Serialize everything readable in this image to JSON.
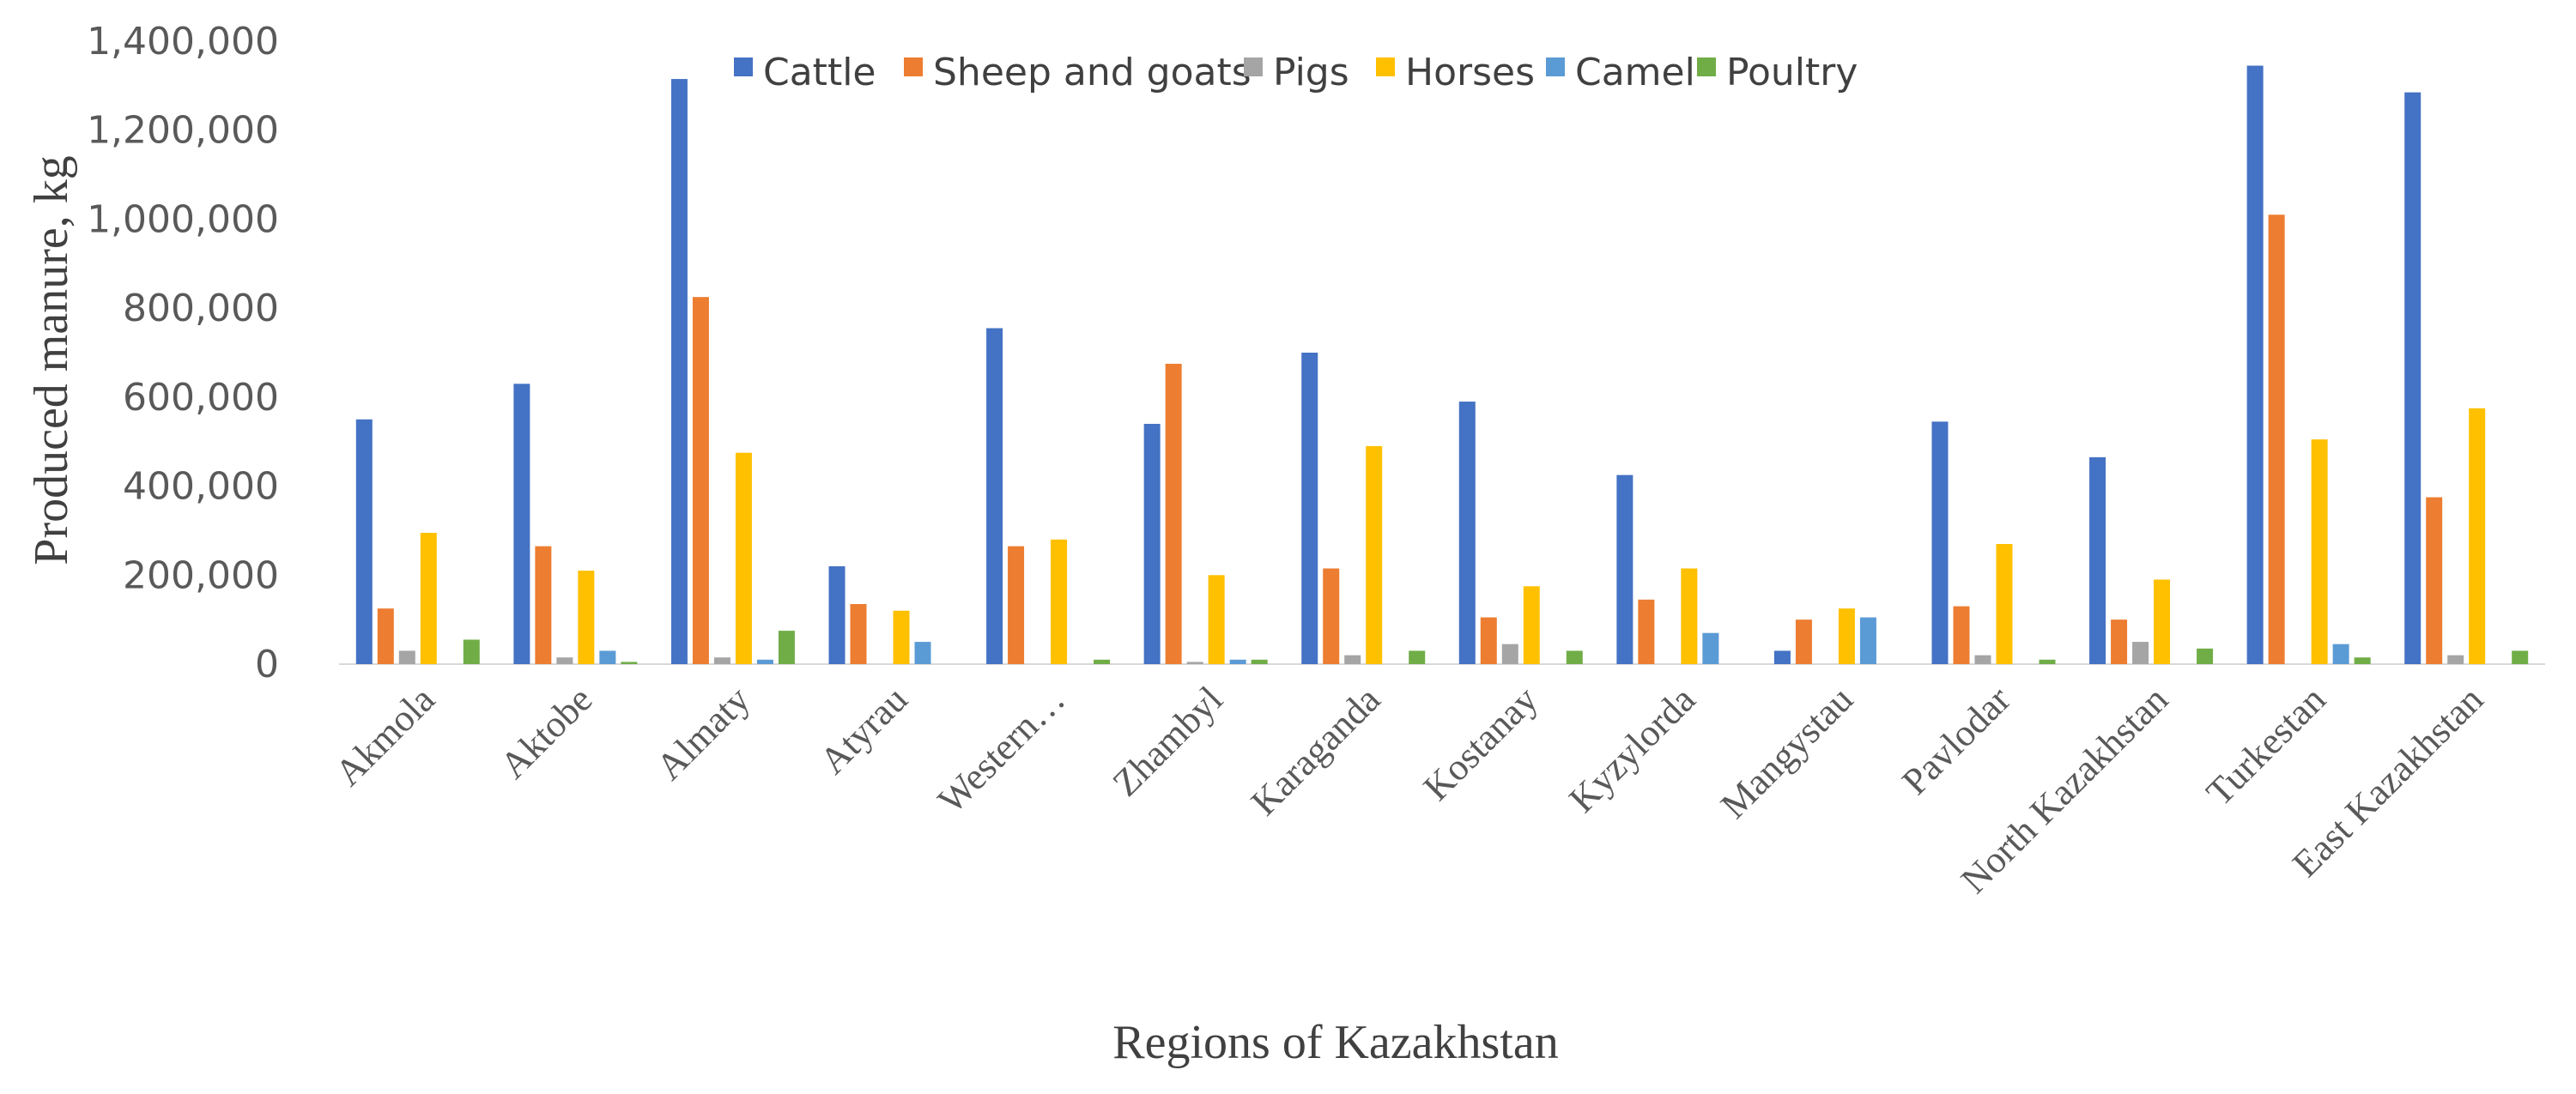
{
  "chart_data": {
    "type": "bar",
    "title": "",
    "xlabel": "Regions of Kazakhstan",
    "ylabel": "Produced manure, kg",
    "ylim": [
      0,
      1400000
    ],
    "yticks": [
      "0",
      "200,000",
      "400,000",
      "600,000",
      "800,000",
      "1,000,000",
      "1,200,000",
      "1,400,000"
    ],
    "ytick_values": [
      0,
      200000,
      400000,
      600000,
      800000,
      1000000,
      1200000,
      1400000
    ],
    "legend_position": "top",
    "grid": false,
    "categories": [
      "Akmola",
      "Aktobe",
      "Almaty",
      "Atyrau",
      "Western…",
      "Zhambyl",
      "Karaganda",
      "Kostanay",
      "Kyzylorda",
      "Mangystau",
      "Pavlodar",
      "North Kazakhstan",
      "Turkestan",
      "East Kazakhstan"
    ],
    "series": [
      {
        "name": "Cattle",
        "color": "#4472C4",
        "values": [
          550000,
          630000,
          1315000,
          220000,
          755000,
          540000,
          700000,
          590000,
          425000,
          30000,
          545000,
          465000,
          1345000,
          1285000
        ]
      },
      {
        "name": "Sheep and goats",
        "color": "#ED7D31",
        "values": [
          125000,
          265000,
          825000,
          135000,
          265000,
          675000,
          215000,
          105000,
          145000,
          100000,
          130000,
          100000,
          1010000,
          375000
        ]
      },
      {
        "name": "Pigs",
        "color": "#A5A5A5",
        "values": [
          30000,
          15000,
          15000,
          0,
          0,
          5000,
          20000,
          45000,
          0,
          0,
          20000,
          50000,
          0,
          20000
        ]
      },
      {
        "name": "Horses",
        "color": "#FFC000",
        "values": [
          295000,
          210000,
          475000,
          120000,
          280000,
          200000,
          490000,
          175000,
          215000,
          125000,
          270000,
          190000,
          505000,
          575000
        ]
      },
      {
        "name": "Camel",
        "color": "#5B9BD5",
        "values": [
          0,
          30000,
          10000,
          50000,
          0,
          10000,
          0,
          0,
          70000,
          105000,
          0,
          0,
          45000,
          0
        ]
      },
      {
        "name": "Poultry",
        "color": "#70AD47",
        "values": [
          55000,
          5000,
          75000,
          0,
          10000,
          10000,
          30000,
          30000,
          0,
          0,
          10000,
          35000,
          15000,
          30000
        ]
      }
    ]
  }
}
